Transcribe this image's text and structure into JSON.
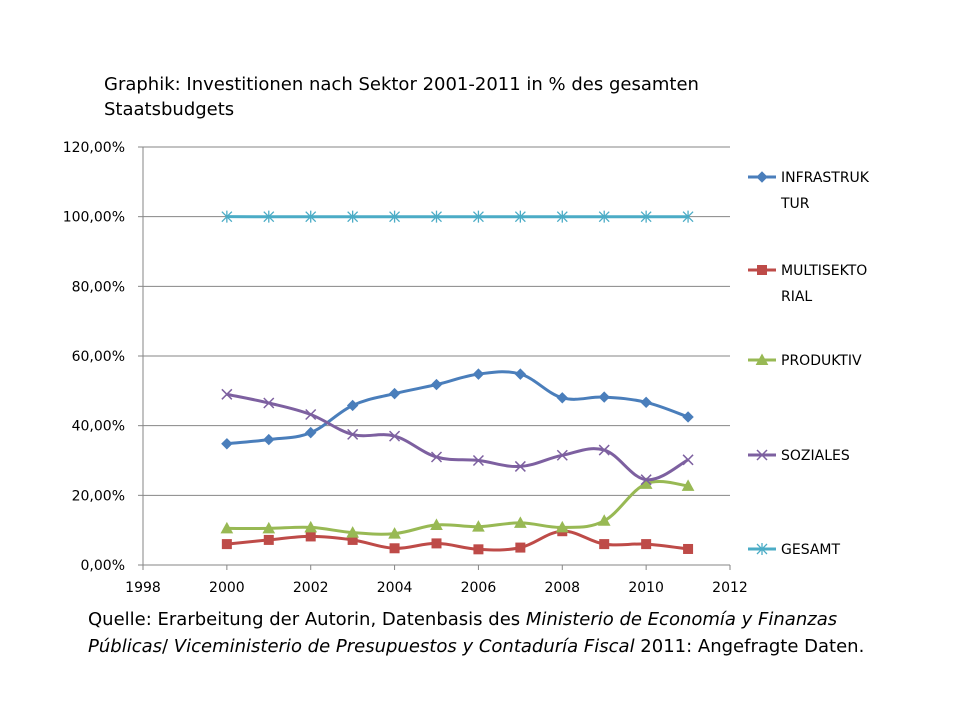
{
  "chart_data": {
    "type": "line",
    "title": "Graphik: Investitionen nach Sektor 2001-2011 in % des gesamten Staatsbudgets",
    "xlabel": "",
    "ylabel": "",
    "xlim": [
      1998,
      2012
    ],
    "ylim": [
      0,
      1.2
    ],
    "x_ticks": [
      "1998",
      "2000",
      "2002",
      "2004",
      "2006",
      "2008",
      "2010",
      "2012"
    ],
    "y_ticks": [
      "0,00%",
      "20,00%",
      "40,00%",
      "60,00%",
      "80,00%",
      "100,00%",
      "120,00%"
    ],
    "grid": "horizontal",
    "legend_position": "right",
    "x": [
      2000,
      2001,
      2002,
      2003,
      2004,
      2005,
      2006,
      2007,
      2008,
      2009,
      2010,
      2011
    ],
    "series": [
      {
        "name": "INFRASTRUKTUR",
        "legend_lines": [
          "INFRASTRUK",
          "TUR"
        ],
        "color": "#4a7ebb",
        "marker": "diamond",
        "values": [
          0.348,
          0.36,
          0.38,
          0.458,
          0.492,
          0.518,
          0.548,
          0.548,
          0.48,
          0.482,
          0.467,
          0.425
        ]
      },
      {
        "name": "MULTISEKTORIAL",
        "legend_lines": [
          "MULTISEKTO",
          "RIAL"
        ],
        "color": "#be4b48",
        "marker": "square",
        "values": [
          0.06,
          0.072,
          0.082,
          0.072,
          0.048,
          0.062,
          0.045,
          0.05,
          0.097,
          0.06,
          0.06,
          0.046
        ]
      },
      {
        "name": "PRODUKTIV",
        "legend_lines": [
          "PRODUKTIV"
        ],
        "color": "#98b954",
        "marker": "triangle",
        "values": [
          0.105,
          0.105,
          0.108,
          0.093,
          0.09,
          0.115,
          0.11,
          0.121,
          0.108,
          0.127,
          0.233,
          0.227
        ]
      },
      {
        "name": "SOZIALES",
        "legend_lines": [
          "SOZIALES"
        ],
        "color": "#7d60a0",
        "marker": "x",
        "values": [
          0.49,
          0.465,
          0.432,
          0.375,
          0.37,
          0.31,
          0.3,
          0.283,
          0.315,
          0.33,
          0.245,
          0.302
        ]
      },
      {
        "name": "GESAMT",
        "legend_lines": [
          "GESAMT"
        ],
        "color": "#4bacc6",
        "marker": "asterisk",
        "values": [
          1.0,
          1.0,
          1.0,
          1.0,
          1.0,
          1.0,
          1.0,
          1.0,
          1.0,
          1.0,
          1.0,
          1.0
        ]
      }
    ]
  },
  "source": {
    "prefix": "Quelle: Erarbeitung der Autorin, Datenbasis des ",
    "ministry": "Ministerio de Economía y Finanzas Públicas",
    "sep": "/ ",
    "vice": "Viceministerio de Presupuestos y Contaduría Fiscal",
    "suffix": " 2011: Angefragte Daten."
  }
}
